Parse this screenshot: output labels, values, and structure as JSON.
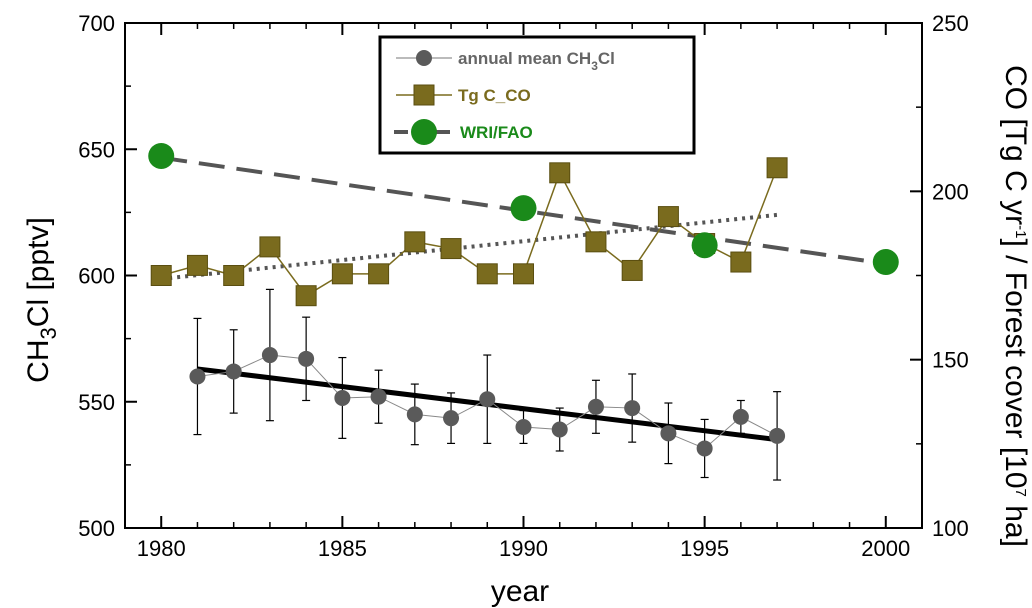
{
  "chart_data": {
    "type": "line",
    "xlabel": "year",
    "ylabel_main": "CH",
    "ylabel_sub": "3",
    "ylabel_end": "Cl [pptv]",
    "y2label_pre": "CO [Tg C yr",
    "y2label_sup1": "-1",
    "y2label_mid": "]  /  Forest cover [10",
    "y2label_sup2": "7",
    "y2label_end": " ha]",
    "xlim": [
      1979,
      2001
    ],
    "ylim": [
      500,
      700
    ],
    "y2lim": [
      100,
      250
    ],
    "x_ticks": [
      "1980",
      "1985",
      "1990",
      "1995",
      "2000"
    ],
    "y_ticks": [
      "500",
      "550",
      "600",
      "650",
      "700"
    ],
    "y2_ticks": [
      "100",
      "150",
      "200",
      "250"
    ],
    "grid": false,
    "legend_position": "top-center",
    "legend": [
      {
        "pre": "annual mean CH",
        "sub": "3",
        "post": "Cl",
        "color": "#666666"
      },
      {
        "pre": "Tg C_CO",
        "sub": "",
        "post": "",
        "color": "#7a6b1e"
      },
      {
        "pre": "WRI/FAO",
        "sub": "",
        "post": "",
        "color": "#1a8a1a"
      }
    ],
    "series": [
      {
        "axis": "left",
        "marker": "circle",
        "color": "#5a5a5a",
        "x": [
          1981,
          1982,
          1983,
          1984,
          1985,
          1986,
          1987,
          1988,
          1989,
          1990,
          1991,
          1992,
          1993,
          1994,
          1995,
          1996,
          1997
        ],
        "y": [
          560,
          562,
          568.5,
          567,
          551.5,
          552,
          545,
          543.5,
          551,
          540,
          539,
          548,
          547.5,
          537.5,
          531.5,
          544,
          536.5
        ],
        "err": [
          23,
          16.5,
          26,
          16.5,
          16,
          10.5,
          12,
          10,
          17.5,
          6.5,
          8.5,
          10.5,
          13.5,
          12,
          11.5,
          6.5,
          17.5
        ]
      },
      {
        "axis": "right",
        "marker": "square",
        "color": "#7a6b1e",
        "x": [
          1980,
          1981,
          1982,
          1983,
          1984,
          1985,
          1986,
          1987,
          1988,
          1989,
          1990,
          1991,
          1992,
          1993,
          1994,
          1995,
          1996,
          1997
        ],
        "y": [
          175,
          178,
          175,
          183.5,
          169,
          175.5,
          175.5,
          185,
          183,
          175.5,
          175.5,
          205.5,
          185,
          176.5,
          192.5,
          184.5,
          179,
          207
        ]
      },
      {
        "axis": "right",
        "marker": "circle-large",
        "color": "#1a8a1a",
        "x": [
          1980,
          1990,
          1995,
          2000
        ],
        "y": [
          210.5,
          195,
          184,
          179
        ]
      }
    ],
    "fits": [
      {
        "axis": "left",
        "style": "solid",
        "color": "#000000",
        "x": [
          1981,
          1997
        ],
        "y": [
          563,
          535
        ]
      },
      {
        "axis": "right",
        "style": "dotted",
        "color": "#555555",
        "x": [
          1980,
          1997
        ],
        "y": [
          174,
          193
        ]
      },
      {
        "axis": "right",
        "style": "dashed",
        "color": "#555555",
        "x": [
          1980,
          2000
        ],
        "y": [
          210,
          178.5
        ]
      }
    ]
  }
}
